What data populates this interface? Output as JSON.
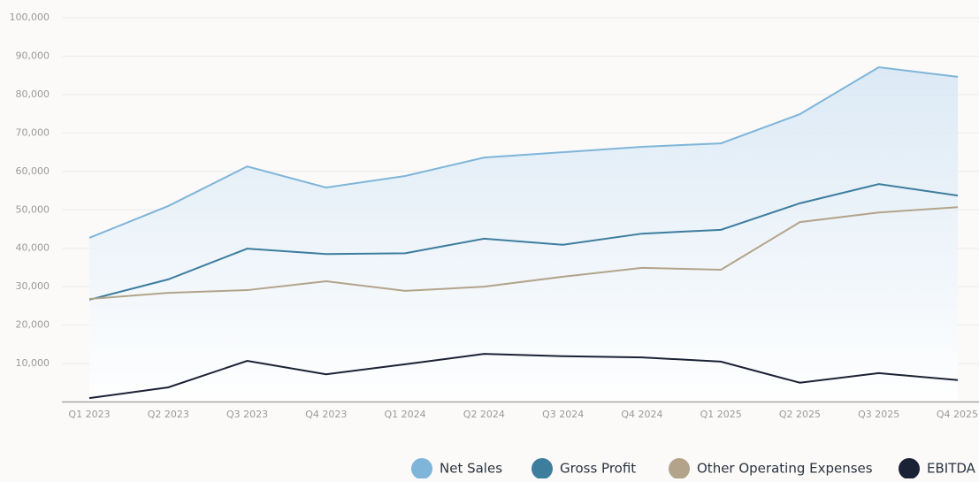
{
  "chart_data": {
    "type": "line",
    "categories": [
      "Q1 2023",
      "Q2 2023",
      "Q3 2023",
      "Q4 2023",
      "Q1 2024",
      "Q2 2024",
      "Q3 2024",
      "Q4 2024",
      "Q1 2025",
      "Q2 2025",
      "Q3 2025",
      "Q4 2025"
    ],
    "series": [
      {
        "name": "Net Sales",
        "color": "#7fb5d9",
        "values": [
          42700,
          51000,
          61300,
          55800,
          58800,
          63600,
          65000,
          66400,
          67300,
          74900,
          87100,
          84600
        ]
      },
      {
        "name": "Gross Profit",
        "color": "#3d7d9e",
        "values": [
          26600,
          31900,
          39900,
          38500,
          38700,
          42500,
          40900,
          43800,
          44800,
          51700,
          56700,
          53700
        ]
      },
      {
        "name": "Other Operating Expenses",
        "color": "#b3a38a",
        "values": [
          26800,
          28400,
          29100,
          31400,
          28900,
          30000,
          32600,
          34900,
          34400,
          46800,
          49300,
          50700
        ]
      },
      {
        "name": "EBITDA",
        "color": "#1c2235",
        "values": [
          1000,
          3800,
          10700,
          7200,
          9800,
          12500,
          11900,
          11600,
          10500,
          5000,
          7500,
          5700
        ]
      }
    ],
    "ylim": [
      0,
      100000
    ],
    "yticks": [
      {
        "value": 10000,
        "label": "10,000"
      },
      {
        "value": 20000,
        "label": "20,000"
      },
      {
        "value": 30000,
        "label": "30,000"
      },
      {
        "value": 40000,
        "label": "40,000"
      },
      {
        "value": 50000,
        "label": "50,000"
      },
      {
        "value": 60000,
        "label": "60,000"
      },
      {
        "value": 70000,
        "label": "70,000"
      },
      {
        "value": 80000,
        "label": "80,000"
      },
      {
        "value": 90000,
        "label": "90,000"
      },
      {
        "value": 100000,
        "label": "100,000"
      }
    ],
    "grid": true,
    "legend": "bottom"
  }
}
